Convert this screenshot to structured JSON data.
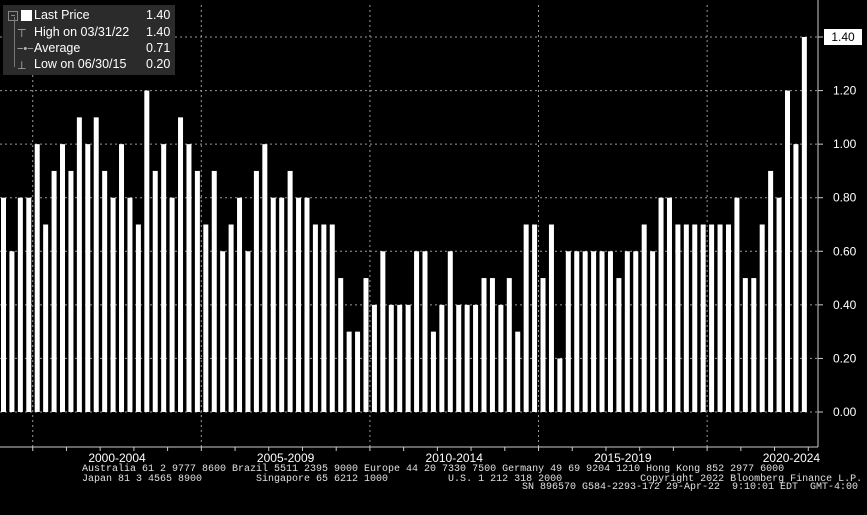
{
  "legend": {
    "last_price_label": "Last Price",
    "last_price_value": "1.40",
    "high_label": "High on 03/31/22",
    "high_value": "1.40",
    "average_label": "Average",
    "average_value": "0.71",
    "low_label": "Low on 06/30/15",
    "low_value": "0.20",
    "collapse_icon": "minus-box-icon"
  },
  "last_value_tag": "1.40",
  "footer": {
    "line1": "Australia 61 2 9777 8600 Brazil 5511 2395 9000 Europe 44 20 7330 7500 Germany 49 69 9204 1210 Hong Kong 852 2977 6000",
    "line2": "Japan 81 3 4565 8900         Singapore 65 6212 1000          U.S. 1 212 318 2000             Copyright 2022 Bloomberg Finance L.P.",
    "line3": "SN 896570 G584-2293-172 29-Apr-22  9:10:01 EDT  GMT-4:00"
  },
  "colors": {
    "background": "#000000",
    "bar": "#ffffff",
    "grid": "#9a9a9a",
    "legend_bg": "#2b2b2b"
  },
  "chart_data": {
    "type": "bar",
    "frequency": "quarterly",
    "x_axis_groups": [
      "2000-2004",
      "2005-2009",
      "2010-2014",
      "2015-2019",
      "2020-2024"
    ],
    "y_ticks": [
      "0.00",
      "0.20",
      "0.40",
      "0.60",
      "0.80",
      "1.00",
      "1.20",
      "1.40"
    ],
    "ylim": [
      -0.26,
      1.52
    ],
    "grid": true,
    "legend_position": "top-left",
    "series": [
      {
        "values": [
          0.8,
          0.6,
          0.8,
          0.8,
          1.0,
          0.7,
          0.9,
          1.0,
          0.9,
          1.1,
          1.0,
          1.1,
          0.9,
          0.8,
          1.0,
          0.8,
          0.7,
          1.2,
          0.9,
          1.0,
          0.8,
          1.1,
          1.0,
          0.9,
          0.7,
          0.9,
          0.6,
          0.7,
          0.8,
          0.6,
          0.9,
          1.0,
          0.8,
          0.8,
          0.9,
          0.8,
          0.8,
          0.7,
          0.7,
          0.7,
          0.5,
          0.3,
          0.3,
          0.5,
          0.4,
          0.6,
          0.4,
          0.4,
          0.4,
          0.6,
          0.6,
          0.3,
          0.4,
          0.6,
          0.4,
          0.4,
          0.4,
          0.5,
          0.5,
          0.4,
          0.5,
          0.3,
          0.7,
          0.7,
          0.5,
          0.7,
          0.2,
          0.6,
          0.6,
          0.6,
          0.6,
          0.6,
          0.6,
          0.5,
          0.6,
          0.6,
          0.7,
          0.6,
          0.8,
          0.8,
          0.7,
          0.7,
          0.7,
          0.7,
          0.7,
          0.7,
          0.7,
          0.8,
          0.5,
          0.5,
          0.7,
          0.9,
          0.8,
          1.2,
          1.0,
          1.4
        ]
      }
    ]
  }
}
